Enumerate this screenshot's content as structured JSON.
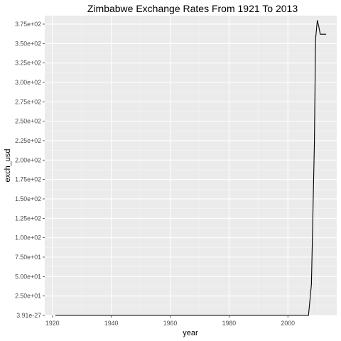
{
  "chart_data": {
    "type": "line",
    "title": "Zimbabwe Exchange Rates From 1921 To 2013",
    "xlabel": "year",
    "ylabel": "exch_usd",
    "xlim": [
      1917.4,
      2016.6
    ],
    "ylim": [
      0,
      380
    ],
    "grid": true,
    "legend": "none",
    "colors": {
      "panel": "#ebebeb",
      "grid_major": "#ffffff",
      "grid_minor": "#f5f5f5",
      "line": "#000000",
      "tick_text": "#4d4d4d"
    },
    "x_ticks": [
      {
        "value": 1920,
        "label": "1920"
      },
      {
        "value": 1940,
        "label": "1940"
      },
      {
        "value": 1960,
        "label": "1960"
      },
      {
        "value": 1980,
        "label": "1980"
      },
      {
        "value": 2000,
        "label": "2000"
      }
    ],
    "y_ticks": [
      {
        "value": 0,
        "label": "3.91e-27"
      },
      {
        "value": 25,
        "label": "2.50e+01"
      },
      {
        "value": 50,
        "label": "5.00e+01"
      },
      {
        "value": 75,
        "label": "7.50e+01"
      },
      {
        "value": 100,
        "label": "1.00e+02"
      },
      {
        "value": 125,
        "label": "1.25e+02"
      },
      {
        "value": 150,
        "label": "1.50e+02"
      },
      {
        "value": 175,
        "label": "1.75e+02"
      },
      {
        "value": 200,
        "label": "2.00e+02"
      },
      {
        "value": 225,
        "label": "2.25e+02"
      },
      {
        "value": 250,
        "label": "2.50e+02"
      },
      {
        "value": 275,
        "label": "2.75e+02"
      },
      {
        "value": 300,
        "label": "3.00e+02"
      },
      {
        "value": 325,
        "label": "3.25e+02"
      },
      {
        "value": 350,
        "label": "3.50e+02"
      },
      {
        "value": 375,
        "label": "3.75e+02"
      }
    ],
    "series": [
      {
        "x": [
          1921,
          1940,
          1960,
          1980,
          2000,
          2007,
          2008,
          2008.5,
          2009,
          2009.4,
          2010,
          2010.5,
          2011,
          2012,
          2013
        ],
        "y": [
          0,
          0,
          0,
          0,
          0,
          0,
          40,
          130,
          220,
          355,
          380,
          372,
          362,
          362,
          362
        ]
      }
    ]
  }
}
